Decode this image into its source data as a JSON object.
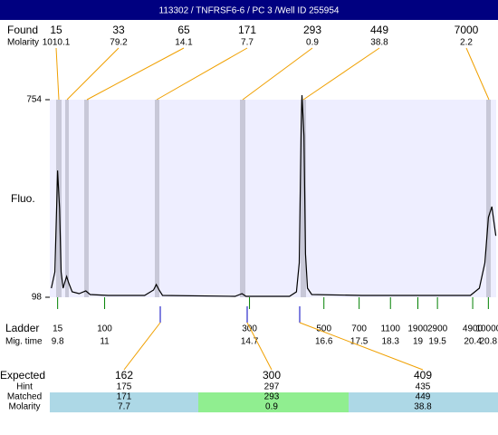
{
  "header": {
    "title": "113302 / TNFRSF6-6 / PC 3 /Well ID 255954"
  },
  "found": {
    "label": "Found",
    "molarity_label": "Molarity",
    "sizes": [
      "15",
      "33",
      "65",
      "171",
      "293",
      "449",
      "7000"
    ],
    "molarity": [
      "1010.1",
      "79.2",
      "14.1",
      "7.7",
      "0.9",
      "38.8",
      "2.2"
    ]
  },
  "chart_data": {
    "type": "line",
    "y_label": "Fluo.",
    "color": "#000000",
    "x": [
      9.64,
      9.73,
      9.78,
      9.8,
      9.85,
      9.89,
      9.94,
      9.98,
      10.03,
      10.08,
      10.17,
      10.35,
      10.52,
      10.63,
      11.09,
      12.02,
      12.25,
      12.32,
      12.39,
      12.48,
      14.33,
      14.51,
      14.61,
      15.72,
      15.9,
      15.97,
      16.02,
      16.04,
      16.09,
      16.13,
      16.18,
      16.29,
      17.57,
      20.34,
      20.57,
      20.71,
      20.8,
      20.89,
      20.99
    ],
    "values": [
      128,
      182,
      423,
      519,
      393,
      182,
      128,
      146,
      167,
      146,
      116,
      110,
      119,
      107,
      104,
      104,
      122,
      140,
      122,
      104,
      101,
      110,
      101,
      101,
      116,
      212,
      664,
      769,
      634,
      242,
      128,
      107,
      104,
      104,
      128,
      212,
      363,
      399,
      302
    ],
    "xlim": [
      9.6,
      21.0
    ],
    "ylim": [
      98,
      754
    ],
    "yticks": [
      98,
      754
    ]
  },
  "ladder": {
    "label": "Ladder",
    "time_label": "Mig. time",
    "sizes": [
      "15",
      "100",
      "300",
      "500",
      "700",
      "1100",
      "1900",
      "2900",
      "4900",
      "10000"
    ],
    "times": [
      9.8,
      11,
      14.7,
      16.6,
      17.5,
      18.3,
      19,
      19.5,
      20.4,
      20.8
    ]
  },
  "expected": {
    "label": "Expected",
    "hint_label": "Hint",
    "matched_label": "Matched",
    "molarity_label": "Molarity",
    "sizes": [
      "162",
      "300",
      "409"
    ],
    "hint": [
      "175",
      "297",
      "435"
    ],
    "matched": [
      "171",
      "293",
      "449"
    ],
    "molarity": [
      "7.7",
      "0.9",
      "38.8"
    ]
  }
}
